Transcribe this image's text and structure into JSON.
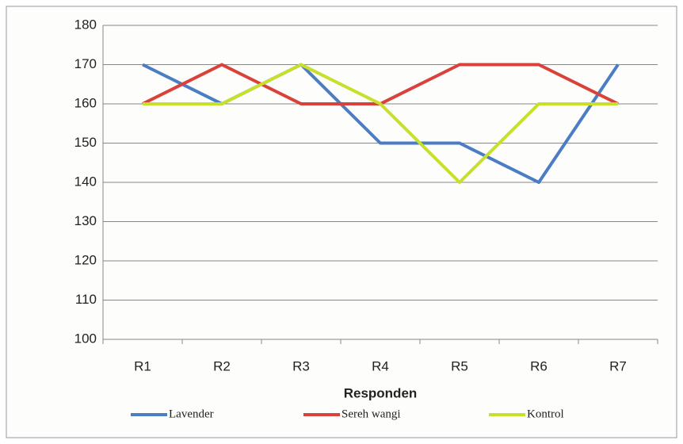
{
  "chart_data": {
    "type": "line",
    "x_label": "Responden",
    "categories": [
      "R1",
      "R2",
      "R3",
      "R4",
      "R5",
      "R6",
      "R7"
    ],
    "series": [
      {
        "name": "Lavender",
        "color": "#4a7dc4",
        "values": [
          170,
          160,
          170,
          150,
          150,
          140,
          170
        ]
      },
      {
        "name": "Sereh wangi",
        "color": "#d9423a",
        "values": [
          160,
          170,
          160,
          160,
          170,
          170,
          160
        ]
      },
      {
        "name": "Kontrol",
        "color": "#c8e02a",
        "values": [
          160,
          160,
          170,
          160,
          140,
          160,
          160
        ]
      }
    ],
    "ylim": [
      100,
      180
    ],
    "yticks": [
      100,
      110,
      120,
      130,
      140,
      150,
      160,
      170,
      180
    ],
    "grid": true,
    "legend": "bottom"
  }
}
